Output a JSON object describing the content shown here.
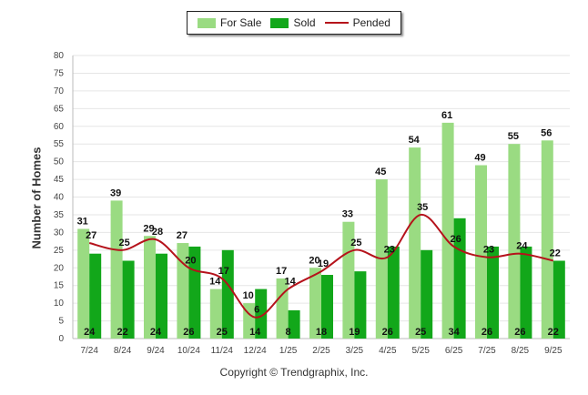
{
  "legend": {
    "for_sale_label": "For Sale",
    "sold_label": "Sold",
    "pended_label": "Pended"
  },
  "colors": {
    "for_sale": "#9ADB82",
    "sold": "#12A71A",
    "pended": "#B5121B",
    "grid": "#E6E6E6"
  },
  "footer": {
    "copyright": "Copyright © Trendgraphix, Inc."
  },
  "chart_data": {
    "type": "bar",
    "title": "",
    "xlabel": "",
    "ylabel": "Number of Homes",
    "ylim": [
      0,
      80
    ],
    "yticks": [
      0,
      5,
      10,
      15,
      20,
      25,
      30,
      35,
      40,
      45,
      50,
      55,
      60,
      65,
      70,
      75,
      80
    ],
    "grid": true,
    "legend_position": "top-center",
    "categories": [
      "7/24",
      "8/24",
      "9/24",
      "10/24",
      "11/24",
      "12/24",
      "1/25",
      "2/25",
      "3/25",
      "4/25",
      "5/25",
      "6/25",
      "7/25",
      "8/25",
      "9/25"
    ],
    "series": [
      {
        "name": "For Sale",
        "kind": "bar",
        "values": [
          31,
          39,
          29,
          27,
          14,
          10,
          17,
          20,
          33,
          45,
          54,
          61,
          49,
          55,
          56
        ]
      },
      {
        "name": "Sold",
        "kind": "bar",
        "values": [
          24,
          22,
          24,
          26,
          25,
          14,
          8,
          18,
          19,
          26,
          25,
          34,
          26,
          26,
          22
        ]
      },
      {
        "name": "Pended",
        "kind": "line",
        "values": [
          27,
          25,
          28,
          20,
          17,
          6,
          14,
          19,
          25,
          23,
          35,
          26,
          23,
          24,
          22
        ]
      }
    ]
  }
}
